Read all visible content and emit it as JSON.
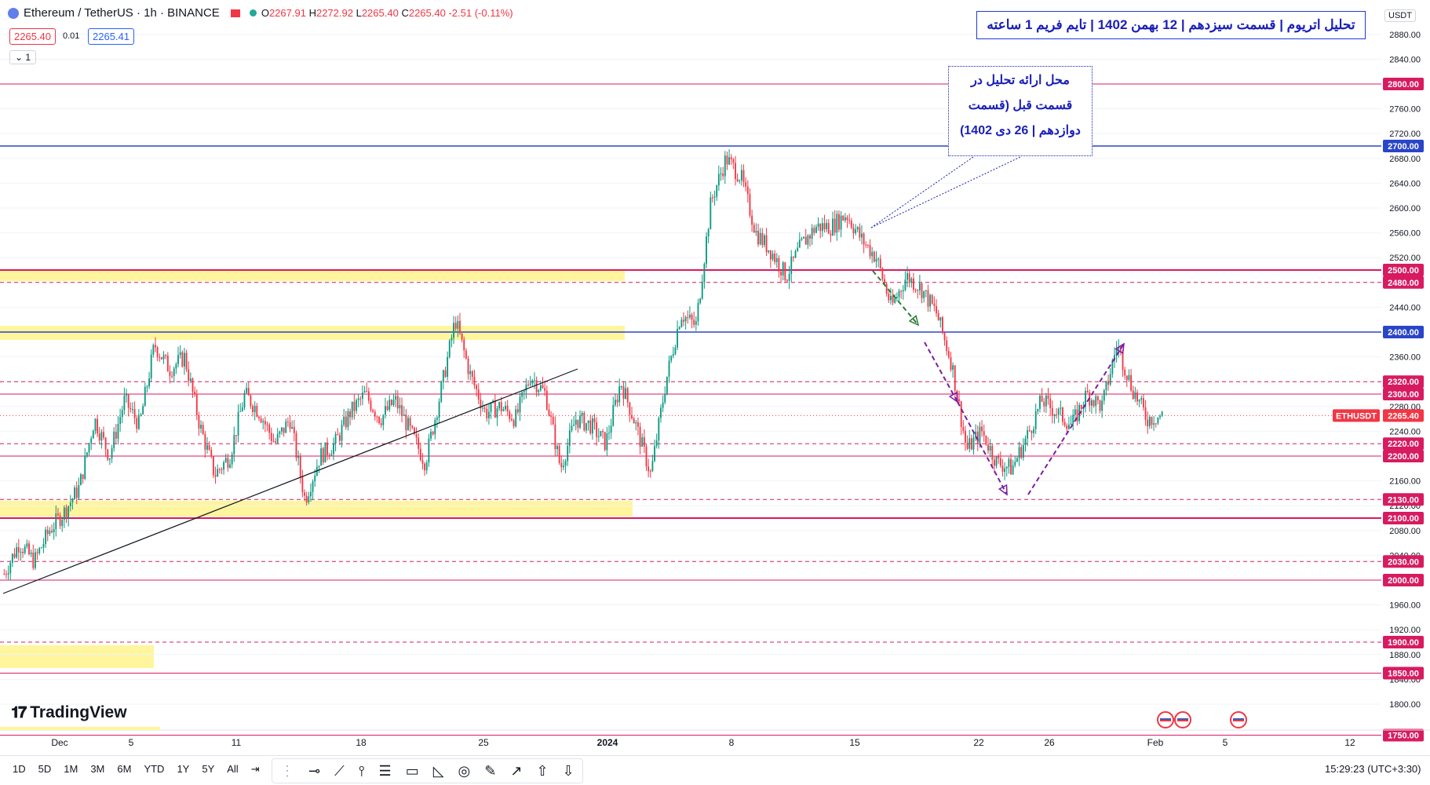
{
  "header": {
    "symbol": "Ethereum / TetherUS · 1h · BINANCE",
    "ohlc": {
      "o": "2267.91",
      "h": "2272.92",
      "l": "2265.40",
      "c": "2265.40",
      "chg": "-2.51 (-0.11%)"
    },
    "bid": "2265.40",
    "spread": "0.01",
    "ask": "2265.41",
    "indicator_count": "1",
    "currency": "USDT"
  },
  "annotations": {
    "title": "تحلیل اتریوم | قسمت سیزدهم | 12 بهمن 1402 | تایم فریم 1 ساعته",
    "note": [
      "محل ارائه تحلیل در",
      "قسمت قبل (قسمت",
      "دوازدهم | 26 دی 1402)"
    ]
  },
  "footer": {
    "brand": "TradingView",
    "ranges": [
      "1D",
      "5D",
      "1M",
      "3M",
      "6M",
      "YTD",
      "1Y",
      "5Y",
      "All"
    ],
    "clock": "15:29:23 (UTC+3:30)"
  },
  "colors": {
    "up": "#089981",
    "down": "#f23645",
    "blue_level": "#2a45c8",
    "pink_level": "#d81b60",
    "zone": "#fff59d",
    "purple": "#7b1fa2",
    "green_arrow": "#2e7d32"
  },
  "chart_data": {
    "type": "candlestick",
    "ylim": [
      1770,
      2900
    ],
    "yticks": [
      1800,
      1840,
      1880,
      1920,
      1960,
      2000,
      2040,
      2080,
      2120,
      2160,
      2200,
      2240,
      2280,
      2320,
      2360,
      2400,
      2440,
      2480,
      2520,
      2560,
      2600,
      2640,
      2680,
      2720,
      2760,
      2800,
      2840,
      2880
    ],
    "x_labels": [
      "Dec",
      "5",
      "11",
      "18",
      "25",
      "2024",
      "8",
      "15",
      "22",
      "26",
      "Feb",
      "5",
      "12"
    ],
    "current_price": {
      "label": "ETHUSDT",
      "value": "2265.40"
    },
    "levels": [
      {
        "value": 2800,
        "label": "2800.00",
        "style": "solid",
        "color": "pink"
      },
      {
        "value": 2700,
        "label": "2700.00",
        "style": "solid",
        "color": "blue"
      },
      {
        "value": 2500,
        "label": "2500.00",
        "style": "solid",
        "color": "pink"
      },
      {
        "value": 2480,
        "label": "2480.00",
        "style": "dashed",
        "color": "pink"
      },
      {
        "value": 2400,
        "label": "2400.00",
        "style": "solid",
        "color": "blue"
      },
      {
        "value": 2320,
        "label": "2320.00",
        "style": "dashed",
        "color": "pink"
      },
      {
        "value": 2300,
        "label": "2300.00",
        "style": "solid",
        "color": "pink"
      },
      {
        "value": 2220,
        "label": "2220.00",
        "style": "dashed",
        "color": "pink"
      },
      {
        "value": 2200,
        "label": "2200.00",
        "style": "solid",
        "color": "pink"
      },
      {
        "value": 2130,
        "label": "2130.00",
        "style": "dashed",
        "color": "pink"
      },
      {
        "value": 2100,
        "label": "2100.00",
        "style": "solid",
        "color": "pink"
      },
      {
        "value": 2030,
        "label": "2030.00",
        "style": "dashed",
        "color": "pink"
      },
      {
        "value": 2000,
        "label": "2000.00",
        "style": "solid",
        "color": "pink"
      },
      {
        "value": 1900,
        "label": "1900.00",
        "style": "dashed",
        "color": "pink"
      },
      {
        "value": 1850,
        "label": "1850.00",
        "style": "solid",
        "color": "pink"
      },
      {
        "value": 1750,
        "label": "1750.00",
        "style": "solid",
        "color": "pink"
      }
    ],
    "price_path": [
      2010,
      2060,
      2030,
      2080,
      2110,
      2150,
      2260,
      2200,
      2290,
      2250,
      2380,
      2340,
      2360,
      2250,
      2170,
      2200,
      2300,
      2270,
      2220,
      2260,
      2130,
      2200,
      2220,
      2270,
      2300,
      2260,
      2290,
      2240,
      2190,
      2300,
      2420,
      2330,
      2270,
      2280,
      2260,
      2330,
      2300,
      2180,
      2260,
      2250,
      2220,
      2320,
      2250,
      2170,
      2320,
      2430,
      2410,
      2610,
      2680,
      2650,
      2560,
      2530,
      2490,
      2540,
      2570,
      2570,
      2590,
      2550,
      2520,
      2440,
      2490,
      2470,
      2430,
      2350,
      2210,
      2240,
      2190,
      2180,
      2230,
      2290,
      2270,
      2250,
      2300,
      2280,
      2380,
      2310,
      2260,
      2265.4
    ]
  }
}
